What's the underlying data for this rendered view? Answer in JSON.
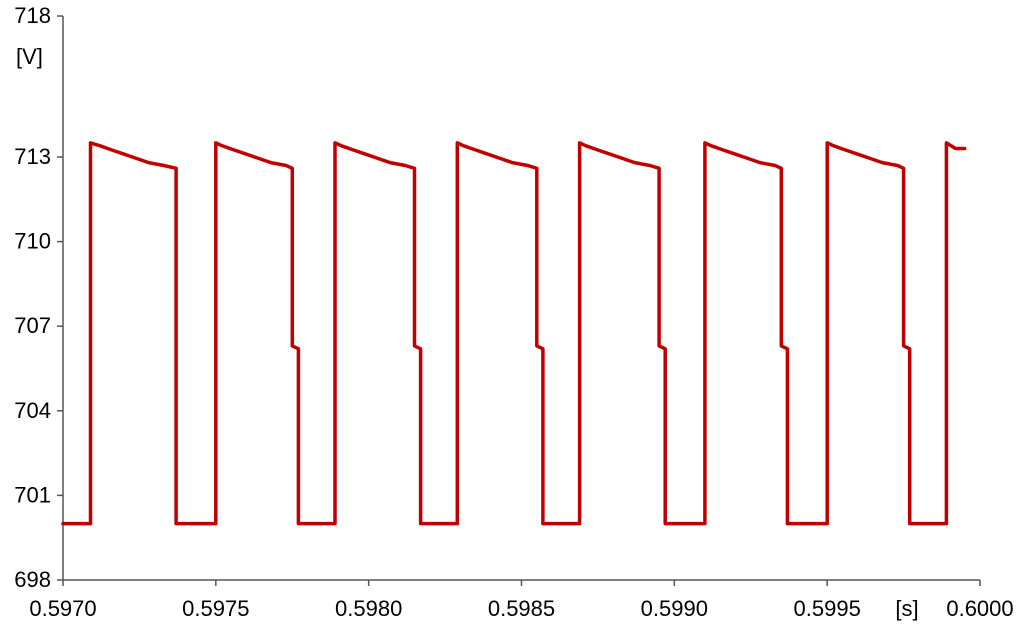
{
  "chart_data": {
    "type": "line",
    "title": "",
    "xlabel": "[s]",
    "ylabel": "[V]",
    "xlim": [
      0.597,
      0.6
    ],
    "ylim": [
      698,
      718
    ],
    "x_ticks": [
      0.597,
      0.5975,
      0.598,
      0.5985,
      0.599,
      0.5995,
      0.6
    ],
    "x_tick_labels": [
      "0.5970",
      "0.5975",
      "0.5980",
      "0.5985",
      "0.5990",
      "0.5995",
      "0.6000"
    ],
    "y_ticks": [
      698,
      701,
      704,
      707,
      710,
      713,
      718
    ],
    "y_tick_labels": [
      "698",
      "701",
      "704",
      "707",
      "710",
      "713",
      "718"
    ],
    "grid": false,
    "legend": "none",
    "series": [
      {
        "color": "#c00000",
        "x": [
          0.597,
          0.59709,
          0.59709,
          0.59712,
          0.59716,
          0.5972,
          0.59724,
          0.59728,
          0.59733,
          0.59737,
          0.59737,
          0.5975,
          0.5975,
          0.59752,
          0.59756,
          0.5976,
          0.59764,
          0.59768,
          0.59773,
          0.59775,
          0.59775,
          0.59777,
          0.59777,
          0.59789,
          0.59789,
          0.59791,
          0.59795,
          0.59799,
          0.59803,
          0.59807,
          0.59812,
          0.59815,
          0.59815,
          0.59817,
          0.59817,
          0.59829,
          0.59829,
          0.59831,
          0.59835,
          0.59839,
          0.59843,
          0.59847,
          0.59852,
          0.59855,
          0.59855,
          0.59857,
          0.59857,
          0.59869,
          0.59869,
          0.59871,
          0.59875,
          0.59879,
          0.59883,
          0.59887,
          0.59892,
          0.59895,
          0.59895,
          0.59897,
          0.59897,
          0.5991,
          0.5991,
          0.59912,
          0.59916,
          0.5992,
          0.59924,
          0.59928,
          0.59933,
          0.59935,
          0.59935,
          0.59937,
          0.59937,
          0.5995,
          0.5995,
          0.59952,
          0.59956,
          0.5996,
          0.59964,
          0.59968,
          0.59973,
          0.59975,
          0.59975,
          0.59977,
          0.59977,
          0.59989,
          0.59989,
          0.59992,
          0.59995
        ],
        "y": [
          700,
          700,
          713.5,
          713.4,
          713.25,
          713.1,
          712.95,
          712.8,
          712.7,
          712.6,
          700,
          700,
          713.5,
          713.4,
          713.25,
          713.1,
          712.95,
          712.8,
          712.7,
          712.6,
          706.3,
          706.2,
          700,
          700,
          713.5,
          713.4,
          713.25,
          713.1,
          712.95,
          712.8,
          712.7,
          712.6,
          706.3,
          706.2,
          700,
          700,
          713.5,
          713.4,
          713.25,
          713.1,
          712.95,
          712.8,
          712.7,
          712.6,
          706.3,
          706.2,
          700,
          700,
          713.5,
          713.4,
          713.25,
          713.1,
          712.95,
          712.8,
          712.7,
          712.6,
          706.3,
          706.2,
          700,
          700,
          713.5,
          713.4,
          713.25,
          713.1,
          712.95,
          712.8,
          712.7,
          712.6,
          706.3,
          706.2,
          700,
          700,
          713.5,
          713.4,
          713.25,
          713.1,
          712.95,
          712.8,
          712.7,
          712.6,
          706.3,
          706.2,
          700,
          700,
          713.5,
          713.3,
          713.3
        ]
      }
    ]
  }
}
